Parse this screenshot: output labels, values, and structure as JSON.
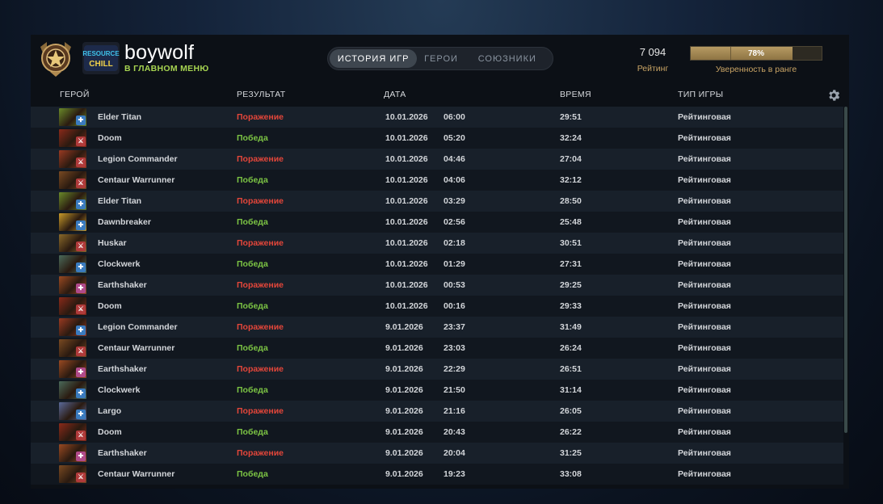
{
  "profile": {
    "username": "boywolf",
    "back_link": "В ГЛАВНОМ МЕНЮ",
    "team_logo_text": "RESOURCE CHILL",
    "rating_value": "7 094",
    "rating_label": "Рейтинг",
    "confidence_percent": 78,
    "confidence_text": "78%",
    "confidence_label": "Уверенность в ранге"
  },
  "tabs": [
    {
      "label": "ИСТОРИЯ ИГР",
      "active": true
    },
    {
      "label": "ГЕРОИ",
      "active": false
    },
    {
      "label": "СОЮЗНИКИ",
      "active": false
    }
  ],
  "columns": {
    "hero": "ГЕРОЙ",
    "result": "РЕЗУЛЬТАТ",
    "date": "ДАТА",
    "duration": "ВРЕМЯ",
    "game_type": "ТИП ИГРЫ"
  },
  "icons": {
    "settings": "gear-icon",
    "rank": "rank-medal-icon"
  },
  "colors": {
    "win": "#7cc444",
    "loss": "#e4463a",
    "accent_gold": "#c9a465",
    "back_link": "#a7d451"
  },
  "matches": [
    {
      "hero": "Elder Titan",
      "result": "Поражение",
      "win": false,
      "date": "10.01.2026",
      "time": "06:00",
      "duration": "29:51",
      "game_type": "Рейтинговая",
      "hero_color": "#6a8a2a",
      "role": "support"
    },
    {
      "hero": "Doom",
      "result": "Победа",
      "win": true,
      "date": "10.01.2026",
      "time": "05:20",
      "duration": "32:24",
      "game_type": "Рейтинговая",
      "hero_color": "#8a2a1a",
      "role": "offlane"
    },
    {
      "hero": "Legion Commander",
      "result": "Поражение",
      "win": false,
      "date": "10.01.2026",
      "time": "04:46",
      "duration": "27:04",
      "game_type": "Рейтинговая",
      "hero_color": "#9a3a22",
      "role": "offlane"
    },
    {
      "hero": "Centaur Warrunner",
      "result": "Победа",
      "win": true,
      "date": "10.01.2026",
      "time": "04:06",
      "duration": "32:12",
      "game_type": "Рейтинговая",
      "hero_color": "#7a4a22",
      "role": "offlane"
    },
    {
      "hero": "Elder Titan",
      "result": "Поражение",
      "win": false,
      "date": "10.01.2026",
      "time": "03:29",
      "duration": "28:50",
      "game_type": "Рейтинговая",
      "hero_color": "#6a8a2a",
      "role": "support"
    },
    {
      "hero": "Dawnbreaker",
      "result": "Победа",
      "win": true,
      "date": "10.01.2026",
      "time": "02:56",
      "duration": "25:48",
      "game_type": "Рейтинговая",
      "hero_color": "#c79a2a",
      "role": "support"
    },
    {
      "hero": "Huskar",
      "result": "Поражение",
      "win": false,
      "date": "10.01.2026",
      "time": "02:18",
      "duration": "30:51",
      "game_type": "Рейтинговая",
      "hero_color": "#8a6a2a",
      "role": "offlane"
    },
    {
      "hero": "Clockwerk",
      "result": "Победа",
      "win": true,
      "date": "10.01.2026",
      "time": "01:29",
      "duration": "27:31",
      "game_type": "Рейтинговая",
      "hero_color": "#4a6a5a",
      "role": "support"
    },
    {
      "hero": "Earthshaker",
      "result": "Поражение",
      "win": false,
      "date": "10.01.2026",
      "time": "00:53",
      "duration": "29:25",
      "game_type": "Рейтинговая",
      "hero_color": "#9a4a22",
      "role": "hard-support"
    },
    {
      "hero": "Doom",
      "result": "Победа",
      "win": true,
      "date": "10.01.2026",
      "time": "00:16",
      "duration": "29:33",
      "game_type": "Рейтинговая",
      "hero_color": "#8a2a1a",
      "role": "offlane"
    },
    {
      "hero": "Legion Commander",
      "result": "Поражение",
      "win": false,
      "date": "9.01.2026",
      "time": "23:37",
      "duration": "31:49",
      "game_type": "Рейтинговая",
      "hero_color": "#9a3a22",
      "role": "support"
    },
    {
      "hero": "Centaur Warrunner",
      "result": "Победа",
      "win": true,
      "date": "9.01.2026",
      "time": "23:03",
      "duration": "26:24",
      "game_type": "Рейтинговая",
      "hero_color": "#7a4a22",
      "role": "offlane"
    },
    {
      "hero": "Earthshaker",
      "result": "Поражение",
      "win": false,
      "date": "9.01.2026",
      "time": "22:29",
      "duration": "26:51",
      "game_type": "Рейтинговая",
      "hero_color": "#9a4a22",
      "role": "hard-support"
    },
    {
      "hero": "Clockwerk",
      "result": "Победа",
      "win": true,
      "date": "9.01.2026",
      "time": "21:50",
      "duration": "31:14",
      "game_type": "Рейтинговая",
      "hero_color": "#4a6a5a",
      "role": "support"
    },
    {
      "hero": "Largo",
      "result": "Поражение",
      "win": false,
      "date": "9.01.2026",
      "time": "21:16",
      "duration": "26:05",
      "game_type": "Рейтинговая",
      "hero_color": "#5a6a9a",
      "role": "support"
    },
    {
      "hero": "Doom",
      "result": "Победа",
      "win": true,
      "date": "9.01.2026",
      "time": "20:43",
      "duration": "26:22",
      "game_type": "Рейтинговая",
      "hero_color": "#8a2a1a",
      "role": "offlane"
    },
    {
      "hero": "Earthshaker",
      "result": "Поражение",
      "win": false,
      "date": "9.01.2026",
      "time": "20:04",
      "duration": "31:25",
      "game_type": "Рейтинговая",
      "hero_color": "#9a4a22",
      "role": "hard-support"
    },
    {
      "hero": "Centaur Warrunner",
      "result": "Победа",
      "win": true,
      "date": "9.01.2026",
      "time": "19:23",
      "duration": "33:08",
      "game_type": "Рейтинговая",
      "hero_color": "#7a4a22",
      "role": "offlane"
    }
  ]
}
